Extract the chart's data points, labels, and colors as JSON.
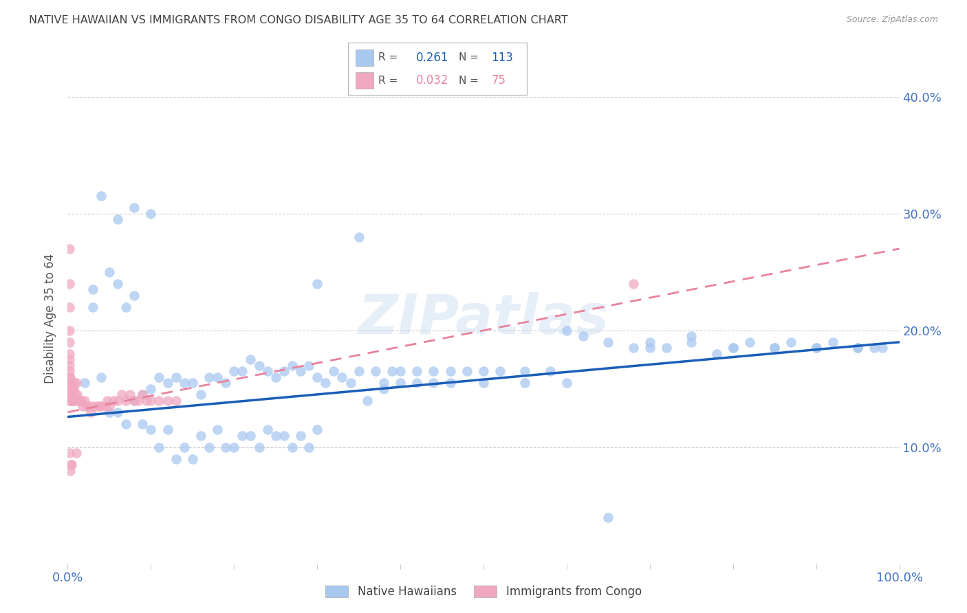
{
  "title": "NATIVE HAWAIIAN VS IMMIGRANTS FROM CONGO DISABILITY AGE 35 TO 64 CORRELATION CHART",
  "source": "Source: ZipAtlas.com",
  "ylabel": "Disability Age 35 to 64",
  "x_min": 0.0,
  "x_max": 1.0,
  "y_min": 0.0,
  "y_max": 0.42,
  "x_ticks": [
    0.0,
    0.1,
    0.2,
    0.3,
    0.4,
    0.5,
    0.6,
    0.7,
    0.8,
    0.9,
    1.0
  ],
  "x_tick_labels": [
    "0.0%",
    "",
    "",
    "",
    "",
    "",
    "",
    "",
    "",
    "",
    "100.0%"
  ],
  "y_ticks": [
    0.0,
    0.1,
    0.2,
    0.3,
    0.4
  ],
  "y_tick_labels": [
    "",
    "10.0%",
    "20.0%",
    "30.0%",
    "40.0%"
  ],
  "legend_r_blue": "0.261",
  "legend_n_blue": "113",
  "legend_r_pink": "0.032",
  "legend_n_pink": "75",
  "blue_color": "#a8c8f0",
  "pink_color": "#f0a8c0",
  "blue_line_color": "#1a5eb8",
  "pink_line_color": "#e8829a",
  "grid_color": "#cccccc",
  "title_color": "#404040",
  "axis_label_color": "#4472c4",
  "watermark": "ZIPatlas",
  "blue_trendline_x": [
    0.0,
    1.0
  ],
  "blue_trendline_y": [
    0.126,
    0.19
  ],
  "pink_trendline_x": [
    0.0,
    1.0
  ],
  "pink_trendline_y": [
    0.13,
    0.27
  ],
  "blue_x": [
    0.02,
    0.03,
    0.03,
    0.04,
    0.05,
    0.05,
    0.06,
    0.06,
    0.07,
    0.07,
    0.08,
    0.08,
    0.09,
    0.09,
    0.1,
    0.1,
    0.11,
    0.11,
    0.12,
    0.12,
    0.13,
    0.13,
    0.14,
    0.14,
    0.15,
    0.15,
    0.16,
    0.16,
    0.17,
    0.17,
    0.18,
    0.18,
    0.19,
    0.19,
    0.2,
    0.2,
    0.21,
    0.21,
    0.22,
    0.22,
    0.23,
    0.23,
    0.24,
    0.24,
    0.25,
    0.25,
    0.26,
    0.26,
    0.27,
    0.27,
    0.28,
    0.28,
    0.29,
    0.29,
    0.3,
    0.3,
    0.31,
    0.32,
    0.33,
    0.34,
    0.35,
    0.36,
    0.37,
    0.38,
    0.39,
    0.4,
    0.42,
    0.44,
    0.46,
    0.48,
    0.5,
    0.52,
    0.55,
    0.58,
    0.6,
    0.62,
    0.65,
    0.68,
    0.7,
    0.72,
    0.75,
    0.78,
    0.8,
    0.82,
    0.85,
    0.87,
    0.9,
    0.92,
    0.95,
    0.04,
    0.06,
    0.08,
    0.1,
    0.3,
    0.35,
    0.38,
    0.4,
    0.42,
    0.44,
    0.46,
    0.5,
    0.55,
    0.6,
    0.65,
    0.7,
    0.75,
    0.8,
    0.85,
    0.9,
    0.95,
    0.97,
    0.98
  ],
  "blue_y": [
    0.155,
    0.235,
    0.22,
    0.16,
    0.25,
    0.13,
    0.24,
    0.13,
    0.22,
    0.12,
    0.23,
    0.14,
    0.145,
    0.12,
    0.15,
    0.115,
    0.16,
    0.1,
    0.155,
    0.115,
    0.16,
    0.09,
    0.155,
    0.1,
    0.155,
    0.09,
    0.145,
    0.11,
    0.16,
    0.1,
    0.16,
    0.115,
    0.155,
    0.1,
    0.165,
    0.1,
    0.165,
    0.11,
    0.175,
    0.11,
    0.17,
    0.1,
    0.165,
    0.115,
    0.16,
    0.11,
    0.165,
    0.11,
    0.17,
    0.1,
    0.165,
    0.11,
    0.17,
    0.1,
    0.16,
    0.115,
    0.155,
    0.165,
    0.16,
    0.155,
    0.165,
    0.14,
    0.165,
    0.15,
    0.165,
    0.165,
    0.165,
    0.165,
    0.165,
    0.165,
    0.165,
    0.165,
    0.165,
    0.165,
    0.2,
    0.195,
    0.19,
    0.185,
    0.19,
    0.185,
    0.195,
    0.18,
    0.185,
    0.19,
    0.185,
    0.19,
    0.185,
    0.19,
    0.185,
    0.315,
    0.295,
    0.305,
    0.3,
    0.24,
    0.28,
    0.155,
    0.155,
    0.155,
    0.155,
    0.155,
    0.155,
    0.155,
    0.155,
    0.04,
    0.185,
    0.19,
    0.185,
    0.185,
    0.185,
    0.185,
    0.185,
    0.185
  ],
  "pink_x": [
    0.002,
    0.002,
    0.002,
    0.002,
    0.002,
    0.002,
    0.002,
    0.002,
    0.002,
    0.002,
    0.002,
    0.003,
    0.003,
    0.003,
    0.003,
    0.003,
    0.003,
    0.003,
    0.003,
    0.003,
    0.003,
    0.004,
    0.004,
    0.004,
    0.004,
    0.004,
    0.004,
    0.004,
    0.005,
    0.005,
    0.005,
    0.005,
    0.005,
    0.006,
    0.006,
    0.006,
    0.007,
    0.007,
    0.008,
    0.008,
    0.009,
    0.01,
    0.01,
    0.011,
    0.012,
    0.013,
    0.015,
    0.016,
    0.018,
    0.02,
    0.022,
    0.025,
    0.028,
    0.03,
    0.035,
    0.038,
    0.04,
    0.045,
    0.048,
    0.05,
    0.055,
    0.06,
    0.065,
    0.07,
    0.075,
    0.08,
    0.085,
    0.09,
    0.095,
    0.1,
    0.11,
    0.12,
    0.13,
    0.68
  ],
  "pink_y": [
    0.27,
    0.24,
    0.22,
    0.2,
    0.19,
    0.18,
    0.175,
    0.17,
    0.165,
    0.16,
    0.095,
    0.16,
    0.155,
    0.155,
    0.15,
    0.15,
    0.145,
    0.145,
    0.14,
    0.14,
    0.08,
    0.155,
    0.15,
    0.145,
    0.145,
    0.14,
    0.14,
    0.085,
    0.155,
    0.155,
    0.15,
    0.145,
    0.085,
    0.15,
    0.15,
    0.14,
    0.15,
    0.14,
    0.155,
    0.14,
    0.145,
    0.155,
    0.095,
    0.145,
    0.14,
    0.14,
    0.14,
    0.14,
    0.135,
    0.14,
    0.135,
    0.135,
    0.13,
    0.135,
    0.135,
    0.135,
    0.135,
    0.135,
    0.14,
    0.135,
    0.14,
    0.14,
    0.145,
    0.14,
    0.145,
    0.14,
    0.14,
    0.145,
    0.14,
    0.14,
    0.14,
    0.14,
    0.14,
    0.24
  ]
}
